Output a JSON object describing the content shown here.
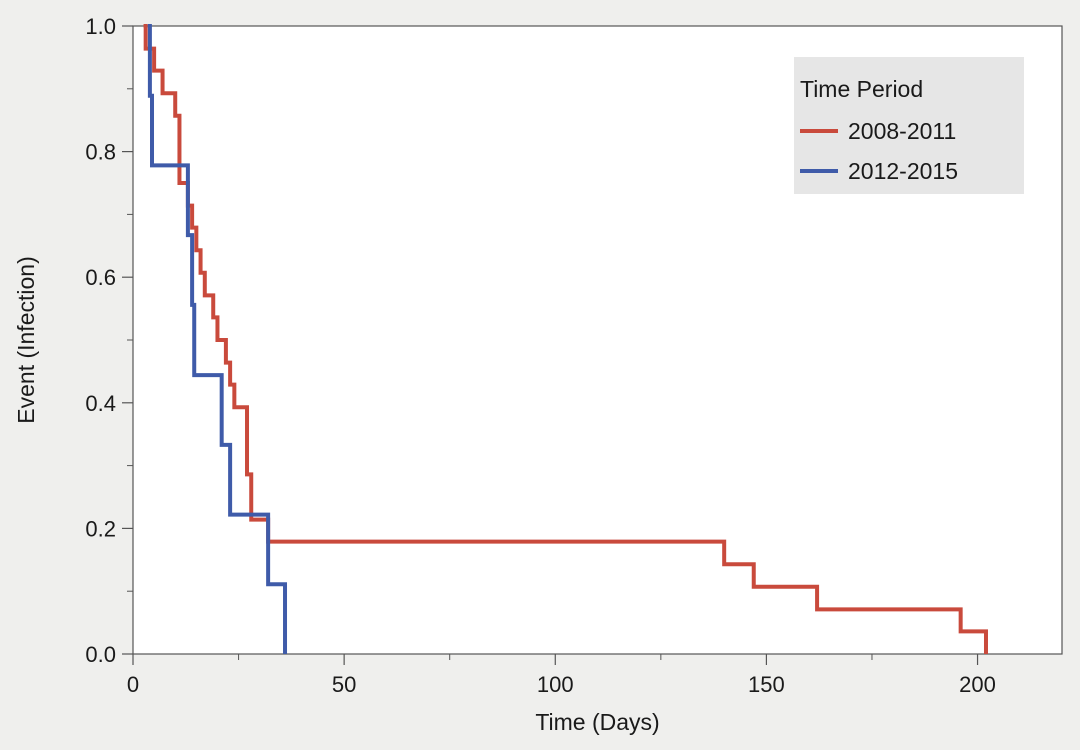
{
  "chart_data": {
    "type": "line",
    "step": true,
    "xlabel": "Time (Days)",
    "ylabel": "Event (Infection)",
    "xlim": [
      0,
      220
    ],
    "ylim": [
      0,
      1
    ],
    "x_ticks": [
      0,
      50,
      100,
      150,
      200
    ],
    "x_tick_labels": [
      "0",
      "50",
      "100",
      "150",
      "200"
    ],
    "y_ticks": [
      0,
      0.2,
      0.4,
      0.6,
      0.8,
      1
    ],
    "y_tick_labels": [
      "0.0",
      "0.2",
      "0.4",
      "0.6",
      "0.8",
      "1.0"
    ],
    "grid": false,
    "legend": {
      "title": "Time Period",
      "position": "top-right"
    },
    "series": [
      {
        "name": "2008-2011",
        "color": "#c94a3c",
        "x": [
          2.5,
          3,
          4,
          5,
          7,
          10,
          11,
          12,
          13,
          14,
          15,
          16,
          17,
          19,
          20,
          22,
          23,
          24,
          27,
          28,
          32,
          140,
          147,
          162,
          196,
          200,
          202
        ],
        "y": [
          1.0,
          0.964,
          0.964,
          0.929,
          0.893,
          0.857,
          0.75,
          0.75,
          0.714,
          0.679,
          0.643,
          0.607,
          0.571,
          0.536,
          0.5,
          0.464,
          0.429,
          0.393,
          0.286,
          0.214,
          0.179,
          0.143,
          0.107,
          0.071,
          0.036,
          0.036,
          0.0
        ]
      },
      {
        "name": "2012-2015",
        "color": "#3f5ba9",
        "x": [
          3.5,
          4,
          4.5,
          12.5,
          13,
          14,
          14.5,
          21,
          23,
          24,
          32,
          36
        ],
        "y": [
          1.0,
          0.889,
          0.778,
          0.778,
          0.667,
          0.556,
          0.444,
          0.333,
          0.222,
          0.222,
          0.111,
          0.0
        ]
      }
    ]
  }
}
